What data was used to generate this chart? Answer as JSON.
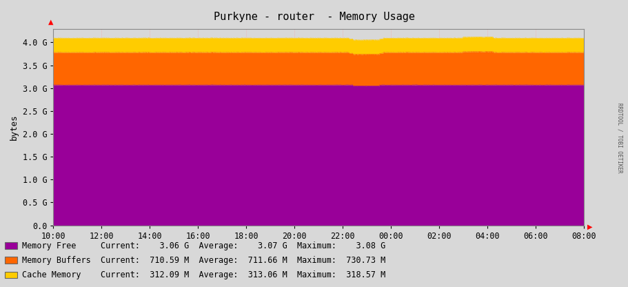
{
  "title": "Purkyne - router  - Memory Usage",
  "ylabel": "bytes",
  "bg_color": "#d8d8d8",
  "plot_bg_color": "#d8d8d8",
  "grid_color": "#ff9999",
  "y_tick_labels": [
    "0.0",
    "0.5 G",
    "1.0 G",
    "1.5 G",
    "2.0 G",
    "2.5 G",
    "3.0 G",
    "3.5 G",
    "4.0 G"
  ],
  "y_tick_values": [
    0,
    500000000.0,
    1000000000.0,
    1500000000.0,
    2000000000.0,
    2500000000.0,
    3000000000.0,
    3500000000.0,
    4000000000.0
  ],
  "ylim_max": 4300000000.0,
  "x_tick_labels": [
    "10:00",
    "12:00",
    "14:00",
    "16:00",
    "18:00",
    "20:00",
    "22:00",
    "00:00",
    "02:00",
    "04:00",
    "06:00",
    "08:00"
  ],
  "n_points": 700,
  "color_free": "#990099",
  "color_buffers": "#ff6600",
  "color_cache": "#ffcc00",
  "watermark": "RRDTOOL / TOBI OETIKER",
  "legend_entries": [
    {
      "label": "Memory Free",
      "current": "3.06 G",
      "average": "3.07 G",
      "maximum": "3.08 G",
      "color": "#990099"
    },
    {
      "label": "Memory Buffers",
      "current": "710.59 M",
      "average": "711.66 M",
      "maximum": "730.73 M",
      "color": "#ff6600"
    },
    {
      "label": "Cache Memory",
      "current": "312.09 M",
      "average": "313.06 M",
      "maximum": "318.57 M",
      "color": "#ffcc00"
    }
  ],
  "mem_free_base": 3070000000.0,
  "mem_buffers_base": 711660000.0,
  "mem_cache_base": 313060000.0
}
